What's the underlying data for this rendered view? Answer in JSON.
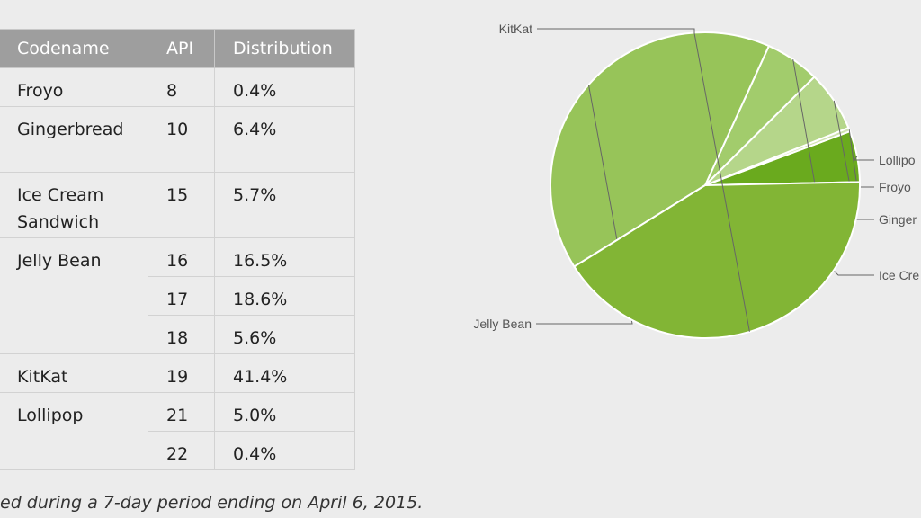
{
  "table": {
    "headers": [
      "Codename",
      "API",
      "Distribution"
    ],
    "rows": [
      {
        "codename": "Froyo",
        "api": "8",
        "dist": "0.4%"
      },
      {
        "codename": "Gingerbread",
        "api": "10",
        "dist": "6.4%"
      },
      {
        "codename": "Ice Cream Sandwich",
        "api": "15",
        "dist": "5.7%"
      },
      {
        "codename": "Jelly Bean",
        "api": "16",
        "dist": "16.5%"
      },
      {
        "codename": "",
        "api": "17",
        "dist": "18.6%"
      },
      {
        "codename": "",
        "api": "18",
        "dist": "5.6%"
      },
      {
        "codename": "KitKat",
        "api": "19",
        "dist": "41.4%"
      },
      {
        "codename": "Lollipop",
        "api": "21",
        "dist": "5.0%"
      },
      {
        "codename": "",
        "api": "22",
        "dist": "0.4%"
      }
    ]
  },
  "caption": "ed during a 7-day period ending on April 6, 2015.",
  "chart_data": {
    "type": "pie",
    "labels": [
      "Lollipop",
      "Froyo",
      "Gingerbread",
      "Ice Cream Sandwich",
      "Jelly Bean",
      "KitKat"
    ],
    "display_labels": [
      "Lollipo",
      "Froyo",
      "Ginger",
      "Ice Cre",
      "Jelly Bean",
      "KitKat"
    ],
    "values": [
      5.4,
      0.4,
      6.4,
      5.7,
      40.7,
      41.4
    ],
    "colors": [
      "#6aaa1e",
      "#cfe3b0",
      "#b5d68a",
      "#a2cc6c",
      "#97c459",
      "#82b535"
    ]
  }
}
